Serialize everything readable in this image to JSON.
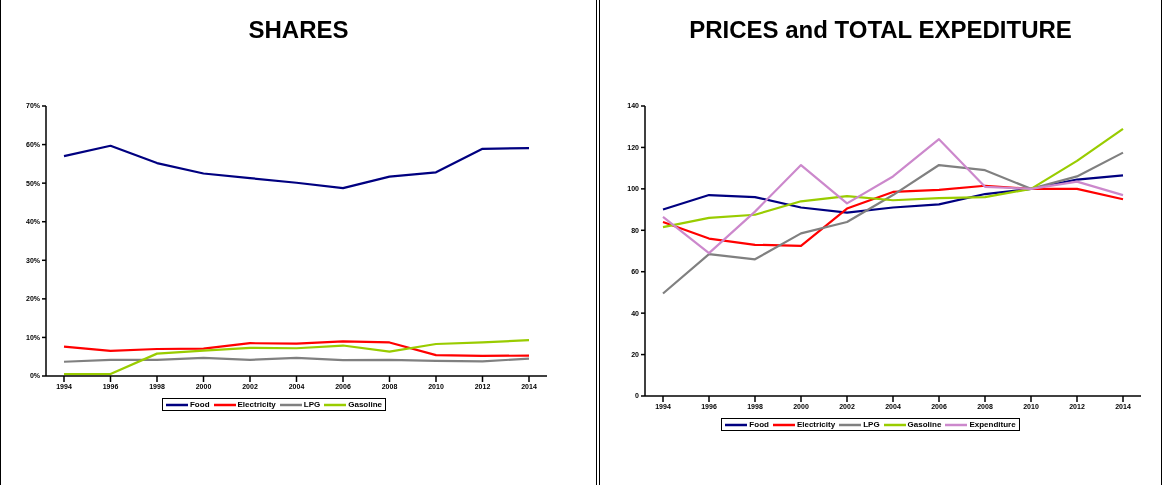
{
  "chart_data": [
    {
      "type": "line",
      "title": "SHARES",
      "categories": [
        "1994",
        "1996",
        "1998",
        "2000",
        "2002",
        "2004",
        "2006",
        "2008",
        "2010",
        "2012",
        "2014"
      ],
      "ylim": [
        0,
        70
      ],
      "yticks": [
        {
          "value": 0,
          "label": "0%"
        },
        {
          "value": 10,
          "label": "10%"
        },
        {
          "value": 20,
          "label": "20%"
        },
        {
          "value": 30,
          "label": "30%"
        },
        {
          "value": 40,
          "label": "40%"
        },
        {
          "value": 50,
          "label": "50%"
        },
        {
          "value": 60,
          "label": "60%"
        },
        {
          "value": 70,
          "label": "70%"
        }
      ],
      "grid": false,
      "legend": "bottom",
      "marker": "none",
      "line_style": "solid",
      "series": [
        {
          "name": "Food",
          "color": "#000080",
          "values": [
            57,
            59.7,
            55.2,
            52.5,
            51.3,
            50.1,
            48.7,
            51.7,
            52.8,
            58.9,
            59.1
          ]
        },
        {
          "name": "Electricity",
          "color": "#ff0000",
          "values": [
            7.6,
            6.5,
            7.0,
            7.1,
            8.5,
            8.4,
            9.0,
            8.7,
            5.4,
            5.2,
            5.3
          ]
        },
        {
          "name": "LPG",
          "color": "#808080",
          "values": [
            3.7,
            4.2,
            4.2,
            4.7,
            4.2,
            4.7,
            4.1,
            4.2,
            3.9,
            3.8,
            4.5
          ]
        },
        {
          "name": "Gasoline",
          "color": "#99cc00",
          "values": [
            0.5,
            0.5,
            5.8,
            6.6,
            7.3,
            7.2,
            7.9,
            6.3,
            8.3,
            8.7,
            9.3
          ]
        }
      ]
    },
    {
      "type": "line",
      "title": "PRICES and TOTAL EXPEDITURE",
      "categories": [
        "1994",
        "1996",
        "1998",
        "2000",
        "2002",
        "2004",
        "2006",
        "2008",
        "2010",
        "2012",
        "2014"
      ],
      "ylim": [
        0,
        140
      ],
      "yticks": [
        0,
        20,
        40,
        60,
        80,
        100,
        120,
        140
      ],
      "grid": false,
      "legend": "bottom",
      "marker": "none",
      "line_style": "solid",
      "series": [
        {
          "name": "Food",
          "color": "#000080",
          "values": [
            90,
            97,
            96,
            91,
            88.5,
            91,
            92.5,
            97.5,
            100,
            104.5,
            106.5
          ]
        },
        {
          "name": "Electricity",
          "color": "#ff0000",
          "values": [
            84,
            76,
            73,
            72.5,
            90.5,
            98.5,
            99.5,
            101.5,
            100,
            100,
            95
          ]
        },
        {
          "name": "LPG",
          "color": "#808080",
          "values": [
            49.5,
            68.5,
            66,
            78.5,
            84,
            97,
            111.5,
            109,
            100,
            106,
            117.5
          ]
        },
        {
          "name": "Gasoline",
          "color": "#99cc00",
          "values": [
            81.5,
            86,
            87.5,
            94,
            96.5,
            94.5,
            95.5,
            96,
            100,
            113.5,
            129
          ]
        },
        {
          "name": "Expenditure",
          "color": "#cc88cc",
          "values": [
            86.5,
            69,
            89,
            111.5,
            93,
            106,
            124,
            101,
            100,
            103.5,
            97
          ]
        }
      ]
    }
  ]
}
